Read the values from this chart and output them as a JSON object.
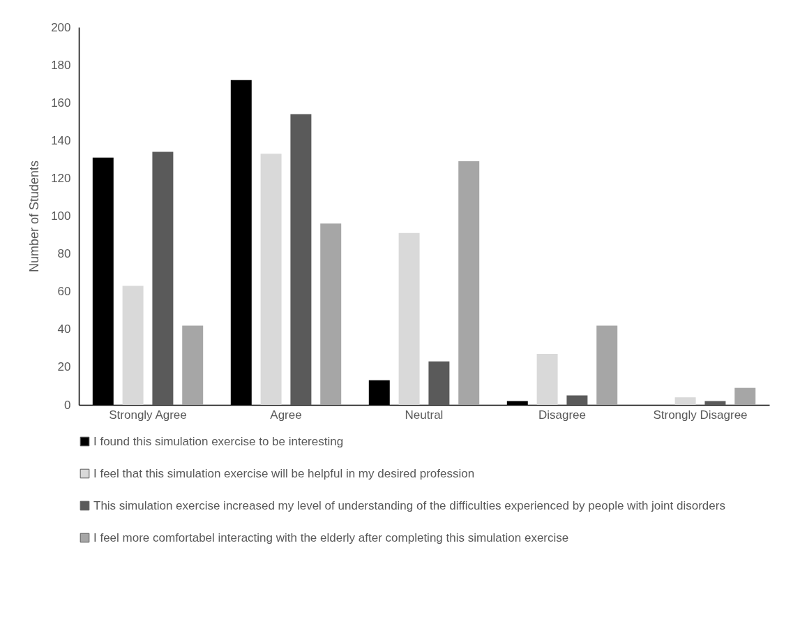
{
  "chart_data": {
    "type": "bar",
    "ylabel": "Number of Students",
    "categories": [
      "Strongly Agree",
      "Agree",
      "Neutral",
      "Disagree",
      "Strongly Disagree"
    ],
    "ylim": [
      0,
      200
    ],
    "yticks": [
      0,
      20,
      40,
      60,
      80,
      100,
      120,
      140,
      160,
      180,
      200
    ],
    "legend": "bottom",
    "series": [
      {
        "name": "I found this simulation exercise to be interesting",
        "color": "#000000",
        "values": [
          131,
          172,
          13,
          2,
          0
        ]
      },
      {
        "name": "I feel that this simulation exercise will be helpful in my desired profession",
        "color": "#d9d9d9",
        "values": [
          63,
          133,
          91,
          27,
          4
        ]
      },
      {
        "name": "This simulation exercise increased my level of understanding of the difficulties experienced by people with joint disorders",
        "color": "#5a5a5a",
        "values": [
          134,
          154,
          23,
          5,
          2
        ]
      },
      {
        "name": "I feel more comfortabel interacting with the elderly after completing this simulation exercise",
        "color": "#a6a6a6",
        "values": [
          42,
          96,
          129,
          42,
          9
        ]
      }
    ]
  }
}
